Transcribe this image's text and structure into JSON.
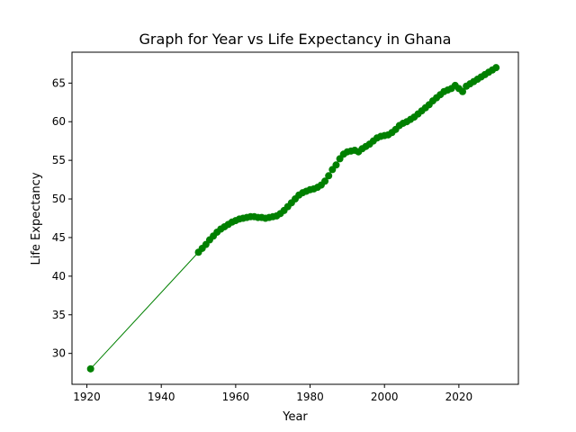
{
  "chart_data": {
    "type": "line",
    "title": "Graph for Year vs Life Expectancy in Ghana",
    "xlabel": "Year",
    "ylabel": "Life Expectancy",
    "xlim": [
      1916,
      2036
    ],
    "ylim": [
      26,
      69
    ],
    "xticks": [
      1920,
      1940,
      1960,
      1980,
      2000,
      2020
    ],
    "yticks": [
      30,
      35,
      40,
      45,
      50,
      55,
      60,
      65
    ],
    "grid": false,
    "legend": "none",
    "color": "#008000",
    "marker": "circle",
    "series": [
      {
        "x": [
          1921,
          1950,
          1951,
          1952,
          1953,
          1954,
          1955,
          1956,
          1957,
          1958,
          1959,
          1960,
          1961,
          1962,
          1963,
          1964,
          1965,
          1966,
          1967,
          1968,
          1969,
          1970,
          1971,
          1972,
          1973,
          1974,
          1975,
          1976,
          1977,
          1978,
          1979,
          1980,
          1981,
          1982,
          1983,
          1984,
          1985,
          1986,
          1987,
          1988,
          1989,
          1990,
          1991,
          1992,
          1993,
          1994,
          1995,
          1996,
          1997,
          1998,
          1999,
          2000,
          2001,
          2002,
          2003,
          2004,
          2005,
          2006,
          2007,
          2008,
          2009,
          2010,
          2011,
          2012,
          2013,
          2014,
          2015,
          2016,
          2017,
          2018,
          2019,
          2020,
          2021,
          2022,
          2023,
          2024,
          2025,
          2026,
          2027,
          2028,
          2029,
          2030
        ],
        "y": [
          28.0,
          43.1,
          43.6,
          44.1,
          44.7,
          45.2,
          45.7,
          46.1,
          46.4,
          46.7,
          47.0,
          47.2,
          47.4,
          47.5,
          47.6,
          47.7,
          47.7,
          47.6,
          47.6,
          47.5,
          47.6,
          47.7,
          47.8,
          48.1,
          48.5,
          49.0,
          49.5,
          50.0,
          50.5,
          50.8,
          51.0,
          51.2,
          51.3,
          51.5,
          51.8,
          52.3,
          53.0,
          53.8,
          54.4,
          55.2,
          55.8,
          56.1,
          56.2,
          56.3,
          56.1,
          56.5,
          56.8,
          57.1,
          57.5,
          57.9,
          58.1,
          58.2,
          58.3,
          58.6,
          59.0,
          59.5,
          59.8,
          60.0,
          60.3,
          60.6,
          61.0,
          61.4,
          61.8,
          62.2,
          62.7,
          63.1,
          63.5,
          63.9,
          64.1,
          64.3,
          64.7,
          64.3,
          63.9,
          64.6,
          64.9,
          65.2,
          65.5,
          65.8,
          66.1,
          66.4,
          66.7,
          67.0
        ]
      }
    ]
  }
}
